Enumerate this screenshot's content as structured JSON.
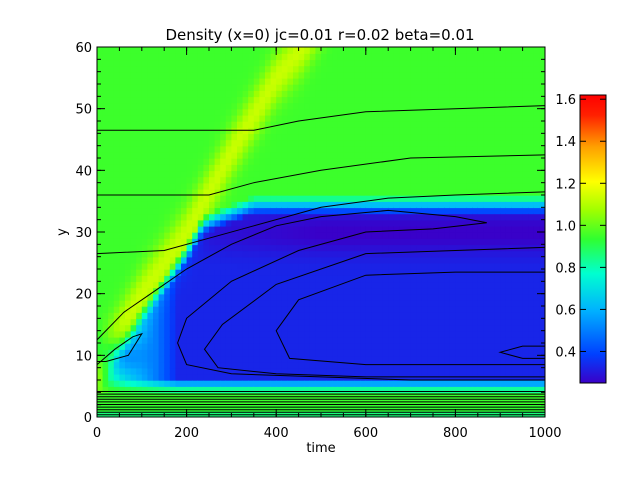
{
  "chart_data": {
    "type": "heatmap",
    "title": "Density (x=0) jc=0.01 r=0.02 beta=0.01",
    "xlabel": "time",
    "ylabel": "y",
    "xlim": [
      0,
      1000
    ],
    "ylim": [
      0,
      60
    ],
    "x_ticks": [
      "0",
      "200",
      "400",
      "600",
      "800",
      "1000"
    ],
    "y_ticks": [
      "0",
      "10",
      "20",
      "30",
      "40",
      "50",
      "60"
    ],
    "colorbar": {
      "range": [
        0.25,
        1.62
      ],
      "ticks": [
        "0.4",
        "0.6",
        "0.8",
        "1.0",
        "1.2",
        "1.4",
        "1.6"
      ],
      "colormap": [
        "#3a00c8",
        "#0040ff",
        "#00b0ff",
        "#00ffd0",
        "#30ff30",
        "#a0ff00",
        "#ffff00",
        "#ffa000",
        "#ff2000",
        "#ff0000"
      ]
    },
    "background_value": 0.95,
    "features": {
      "wave_front_high_density": {
        "value": 1.1,
        "path": [
          [
            0,
            8
          ],
          [
            100,
            20
          ],
          [
            200,
            30
          ],
          [
            300,
            43
          ],
          [
            400,
            55
          ],
          [
            460,
            60
          ]
        ]
      },
      "depletion_region": {
        "value_min": 0.28,
        "y_range": [
          5,
          36
        ],
        "min_near_y": 30
      },
      "boundary_layer_y": [
        0,
        5
      ]
    },
    "contours": [
      {
        "level": 1.0,
        "points": [
          [
            0,
            46.5
          ],
          [
            350,
            46.5
          ],
          [
            450,
            48
          ],
          [
            600,
            49.5
          ],
          [
            800,
            50
          ],
          [
            1000,
            50.5
          ]
        ]
      },
      {
        "level": 1.0,
        "points": [
          [
            0,
            36
          ],
          [
            250,
            36
          ],
          [
            350,
            38
          ],
          [
            500,
            40
          ],
          [
            700,
            42
          ],
          [
            1000,
            42.5
          ]
        ]
      },
      {
        "level": 1.0,
        "points": [
          [
            0,
            26.5
          ],
          [
            150,
            27
          ],
          [
            250,
            29
          ],
          [
            350,
            31
          ],
          [
            500,
            34
          ],
          [
            650,
            35.5
          ],
          [
            800,
            36
          ],
          [
            1000,
            36.5
          ]
        ]
      },
      {
        "level": 0.5,
        "points": [
          [
            0,
            12.5
          ],
          [
            60,
            17
          ],
          [
            120,
            20
          ],
          [
            200,
            24
          ],
          [
            300,
            28
          ],
          [
            400,
            31
          ],
          [
            500,
            32.5
          ],
          [
            650,
            33.5
          ],
          [
            800,
            32.5
          ],
          [
            870,
            31.5
          ],
          [
            750,
            30.5
          ],
          [
            600,
            30
          ],
          [
            450,
            27
          ],
          [
            300,
            22
          ],
          [
            200,
            16
          ],
          [
            180,
            12
          ],
          [
            200,
            8.5
          ],
          [
            300,
            7
          ],
          [
            500,
            6.5
          ],
          [
            700,
            6
          ],
          [
            1000,
            6
          ]
        ]
      },
      {
        "level": 0.4,
        "points": [
          [
            1000,
            27.5
          ],
          [
            800,
            27
          ],
          [
            600,
            26.5
          ],
          [
            400,
            21.5
          ],
          [
            280,
            15
          ],
          [
            240,
            11
          ],
          [
            270,
            8
          ],
          [
            400,
            7
          ],
          [
            600,
            6.5
          ],
          [
            1000,
            6.5
          ]
        ]
      },
      {
        "level": 0.35,
        "points": [
          [
            1000,
            23.5
          ],
          [
            800,
            23.5
          ],
          [
            600,
            23
          ],
          [
            450,
            19
          ],
          [
            400,
            14
          ],
          [
            430,
            9.5
          ],
          [
            600,
            8.5
          ],
          [
            800,
            8.5
          ],
          [
            1000,
            8.5
          ]
        ]
      },
      {
        "level": 0.3,
        "points": [
          [
            1000,
            11.5
          ],
          [
            950,
            11.5
          ],
          [
            900,
            10.5
          ],
          [
            950,
            9.5
          ],
          [
            1000,
            9.5
          ]
        ]
      },
      {
        "level": 0.6,
        "points": [
          [
            0,
            8.5
          ],
          [
            40,
            11
          ],
          [
            80,
            13
          ],
          [
            100,
            13.5
          ],
          [
            70,
            10
          ],
          [
            20,
            9
          ],
          [
            0,
            9
          ]
        ]
      }
    ]
  }
}
